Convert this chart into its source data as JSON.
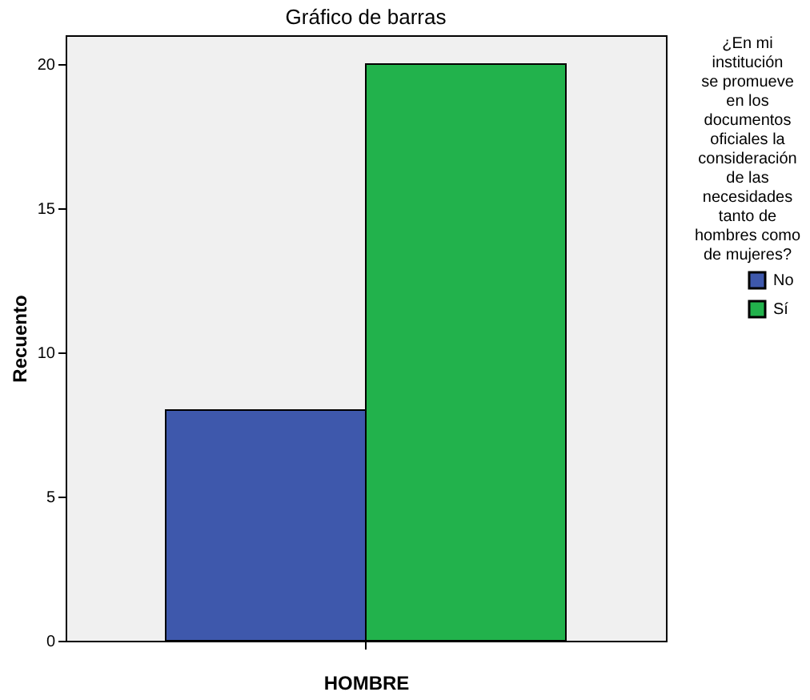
{
  "chart_data": {
    "type": "bar",
    "title": "Gráfico de barras",
    "xlabel": "HOMBRE",
    "ylabel": "Recuento",
    "legend_title": "¿En mi institución se promueve en los documentos oficiales la consideración de las necesidades tanto de hombres como de mujeres?",
    "categories": [
      null
    ],
    "series": [
      {
        "name": "No",
        "color": "#3e58ac",
        "values": [
          8
        ]
      },
      {
        "name": "Sí",
        "color": "#22b24c",
        "values": [
          20
        ]
      }
    ],
    "ylim": [
      0,
      21
    ],
    "yticks": [
      0,
      5,
      10,
      15,
      20
    ],
    "grid": false,
    "legend": "right"
  }
}
